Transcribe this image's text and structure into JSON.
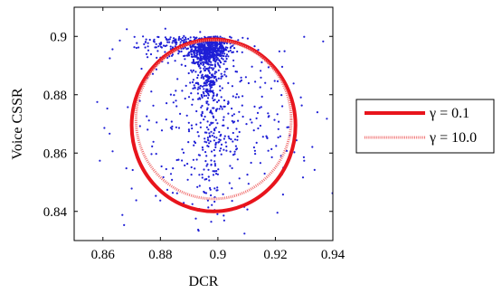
{
  "chart_data": {
    "type": "scatter",
    "xlabel": "DCR",
    "ylabel": "Voice CSSR",
    "xlim": [
      0.85,
      0.94
    ],
    "ylim": [
      0.83,
      0.91
    ],
    "x_ticks": [
      "0.86",
      "0.88",
      "0.9",
      "0.92",
      "0.94"
    ],
    "y_ticks": [
      "0.84",
      "0.86",
      "0.88",
      "0.9"
    ],
    "x_tick_values": [
      0.86,
      0.88,
      0.9,
      0.92,
      0.94
    ],
    "y_tick_values": [
      0.84,
      0.86,
      0.88,
      0.9
    ],
    "grid": false,
    "legend_position": "right",
    "point_color": "#1f1fd6",
    "series": [
      {
        "name": "γ = 0.1",
        "kind": "ellipse-boundary",
        "style": "solid",
        "color": "#e8141c",
        "center": [
          0.8985,
          0.8695
        ],
        "radius_x": 0.0285,
        "radius_y": 0.0295
      },
      {
        "name": "γ = 10.0",
        "kind": "ellipse-boundary",
        "style": "dotted",
        "color": "#f07070",
        "center": [
          0.8985,
          0.8715
        ],
        "radius_x": 0.027,
        "radius_y": 0.0272
      }
    ],
    "scatter_clusters": [
      {
        "cx": 0.897,
        "cy": 0.8955,
        "sx": 0.0035,
        "sy": 0.0025,
        "n": 520
      },
      {
        "cx": 0.896,
        "cy": 0.888,
        "sx": 0.0025,
        "sy": 0.006,
        "n": 220
      },
      {
        "cx": 0.885,
        "cy": 0.897,
        "sx": 0.007,
        "sy": 0.0025,
        "n": 140
      },
      {
        "cx": 0.9,
        "cy": 0.872,
        "sx": 0.014,
        "sy": 0.014,
        "n": 260
      },
      {
        "cx": 0.898,
        "cy": 0.862,
        "sx": 0.0025,
        "sy": 0.012,
        "n": 120
      },
      {
        "cx": 0.9,
        "cy": 0.87,
        "sx": 0.024,
        "sy": 0.02,
        "n": 90
      }
    ]
  }
}
